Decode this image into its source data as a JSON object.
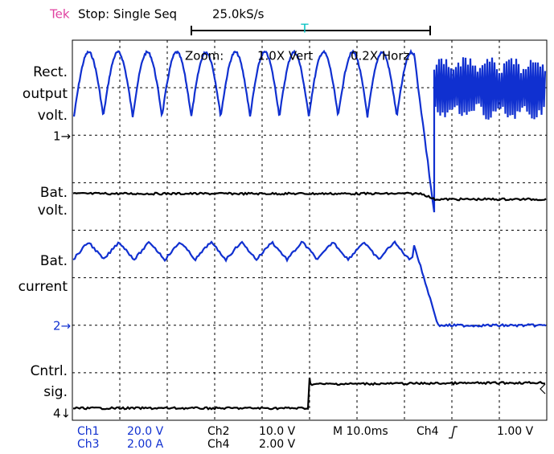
{
  "header": {
    "brand": "Tek",
    "status": "Stop: Single Seq",
    "rate": "25.0kS/s"
  },
  "zoom": {
    "label": "Zoom:",
    "vert": "1.0X Vert",
    "horz": "0.2X Horz"
  },
  "traces": [
    {
      "label": [
        "Rect.",
        "output",
        "volt."
      ],
      "marker": "1→"
    },
    {
      "label": [
        "Bat.",
        "volt."
      ]
    },
    {
      "label": [
        "Bat.",
        "current"
      ],
      "marker": "2→"
    },
    {
      "label": [
        "Cntrl.",
        "sig."
      ],
      "marker": "4↓"
    }
  ],
  "readout": {
    "channels": [
      {
        "name": "Ch1",
        "scale": "20.0 V"
      },
      {
        "name": "Ch2",
        "scale": "10.0 V"
      },
      {
        "name": "Ch3",
        "scale": "2.00 A"
      },
      {
        "name": "Ch4",
        "scale": "2.00 V"
      }
    ],
    "timebase": "M 10.0ms",
    "trigger_source": "Ch4",
    "trigger_level": "1.00 V"
  }
}
